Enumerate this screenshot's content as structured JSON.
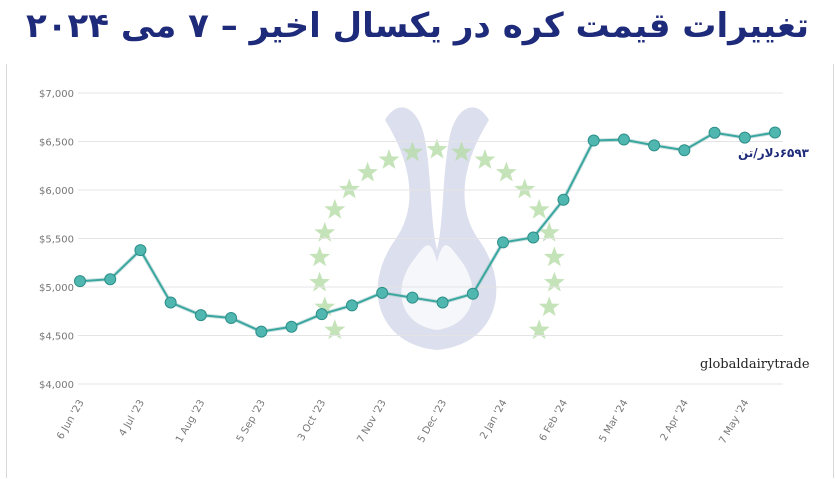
{
  "title": "تغییرات قیمت کره در یکسال اخیر – ۷ می ۲۰۲۴",
  "source": "globaldairytrade",
  "last_value_label": "۶۵۹۳دلار/تن",
  "colors": {
    "line": "#3aa6a0",
    "marker": "#4fb6b0",
    "grid": "#e4e4e4",
    "title": "#1e2a7a",
    "watermark": "#bfc4de",
    "star": "#b7dca7"
  },
  "chart_data": {
    "type": "line",
    "title": "",
    "xlabel": "",
    "ylabel": "",
    "ylim": [
      4000,
      7000
    ],
    "yticks": [
      "$4,000",
      "$4,500",
      "$5,000",
      "$5,500",
      "$6,000",
      "$6,500",
      "$7,000"
    ],
    "ytick_values": [
      4000,
      4500,
      5000,
      5500,
      6000,
      6500,
      7000
    ],
    "xtick_labels": [
      "6 Jun '23",
      "4 Jul '23",
      "1 Aug '23",
      "5 Sep '23",
      "3 Oct '23",
      "7 Nov '23",
      "5 Dec '23",
      "2 Jan '24",
      "6 Feb '24",
      "5 Mar '24",
      "2 Apr '24",
      "7 May '24"
    ],
    "xtick_indices": [
      0,
      2,
      4,
      6,
      8,
      10,
      12,
      14,
      16,
      18,
      20,
      22
    ],
    "grid": true,
    "series": [
      {
        "values": [
          5060,
          5080,
          5380,
          4840,
          4710,
          4680,
          4540,
          4590,
          4720,
          4810,
          4940,
          4890,
          4840,
          4930,
          5460,
          5510,
          5900,
          6510,
          6520,
          6460,
          6410,
          6590,
          6540,
          6593
        ]
      }
    ]
  }
}
